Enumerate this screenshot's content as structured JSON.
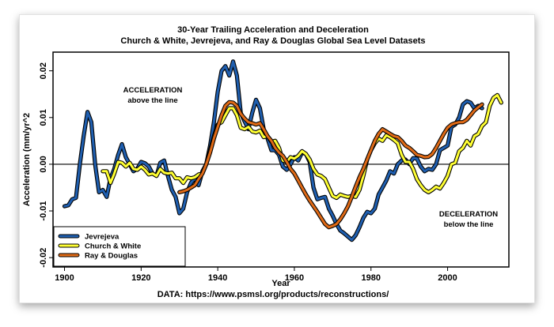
{
  "chart_data": {
    "type": "line",
    "title": "30-Year Trailing Acceleration and Deceleration",
    "subtitle": "Church & White, Jevrejeva, and Ray & Douglas Global Sea Level Datasets",
    "xlabel": "Year",
    "ylabel": "Acceleration (mm/yr^2",
    "xlim": [
      1897,
      2016
    ],
    "ylim": [
      -0.022,
      0.024
    ],
    "xticks": [
      "1900",
      "1920",
      "1940",
      "1960",
      "1980",
      "2000"
    ],
    "xtick_values": [
      1900,
      1920,
      1940,
      1960,
      1980,
      2000
    ],
    "yticks": [
      "-0.02",
      "-0.01",
      "0.00",
      "0.01",
      "0.02"
    ],
    "ytick_values": [
      -0.02,
      -0.01,
      0.0,
      0.01,
      0.02
    ],
    "reference_line": 0,
    "annotations": {
      "acceleration_title": "ACCELERATION",
      "acceleration_sub": "above the line",
      "deceleration_title": "DECELERATION",
      "deceleration_sub": "below the line"
    },
    "source": "DATA: https://www.psmsl.org/products/reconstructions/",
    "legend_position": "bottom-left",
    "series": [
      {
        "name": "Jevrejeva",
        "color": "#1f5fb0",
        "x": [
          1900,
          1901,
          1902,
          1903,
          1904,
          1905,
          1906,
          1907,
          1908,
          1909,
          1910,
          1911,
          1912,
          1913,
          1914,
          1915,
          1916,
          1917,
          1918,
          1919,
          1920,
          1921,
          1922,
          1923,
          1924,
          1925,
          1926,
          1927,
          1928,
          1929,
          1930,
          1931,
          1932,
          1933,
          1934,
          1935,
          1936,
          1937,
          1938,
          1939,
          1940,
          1941,
          1942,
          1943,
          1944,
          1945,
          1946,
          1947,
          1948,
          1949,
          1950,
          1951,
          1952,
          1953,
          1954,
          1955,
          1956,
          1957,
          1958,
          1959,
          1960,
          1961,
          1962,
          1963,
          1964,
          1965,
          1966,
          1967,
          1968,
          1969,
          1970,
          1971,
          1972,
          1973,
          1974,
          1975,
          1976,
          1977,
          1978,
          1979,
          1980,
          1981,
          1982,
          1983,
          1984,
          1985,
          1986,
          1987,
          1988,
          1989,
          1990,
          1991,
          1992,
          1993,
          1994,
          1995,
          1996,
          1997,
          1998,
          1999,
          2000,
          2001,
          2002,
          2003,
          2004,
          2005,
          2006,
          2007,
          2008,
          2009
        ],
        "values": [
          -0.009,
          -0.0088,
          -0.0075,
          -0.0072,
          0.0,
          0.006,
          0.0112,
          0.009,
          0.0,
          -0.006,
          -0.0055,
          -0.007,
          -0.003,
          -0.001,
          0.002,
          0.0043,
          0.0015,
          0.0,
          -0.0015,
          -0.001,
          0.0005,
          0.0002,
          -0.0005,
          -0.002,
          -0.0025,
          0.0003,
          0.0008,
          -0.0025,
          -0.0055,
          -0.007,
          -0.0105,
          -0.0095,
          -0.006,
          -0.004,
          -0.003,
          -0.0045,
          -0.0015,
          0.0,
          0.004,
          0.009,
          0.0155,
          0.02,
          0.021,
          0.019,
          0.022,
          0.019,
          0.011,
          0.0092,
          0.0075,
          0.011,
          0.0138,
          0.012,
          0.0075,
          0.0055,
          0.003,
          0.003,
          0.002,
          -0.0005,
          -0.0012,
          0.0,
          0.0015,
          0.0008,
          0.0025,
          0.0022,
          0.0005,
          -0.005,
          -0.0075,
          -0.0072,
          -0.007,
          -0.0095,
          -0.011,
          -0.0128,
          -0.0142,
          -0.0148,
          -0.0155,
          -0.0162,
          -0.0152,
          -0.0135,
          -0.0115,
          -0.0102,
          -0.0105,
          -0.0095,
          -0.0065,
          -0.005,
          -0.0035,
          -0.0015,
          -0.002,
          0.0,
          0.0008,
          0.001,
          0.0,
          0.0013,
          0.0012,
          -0.0005,
          -0.0015,
          -0.001,
          -0.0012,
          0.0,
          0.003,
          0.0035,
          0.004,
          0.008,
          0.0085,
          0.01,
          0.0128,
          0.0135,
          0.0132,
          0.012,
          0.0125,
          0.012
        ]
      },
      {
        "name": "Church & White",
        "color": "#ffff33",
        "x": [
          1910,
          1911,
          1912,
          1913,
          1914,
          1915,
          1916,
          1917,
          1918,
          1919,
          1920,
          1921,
          1922,
          1923,
          1924,
          1925,
          1926,
          1927,
          1928,
          1929,
          1930,
          1931,
          1932,
          1933,
          1934,
          1935,
          1936,
          1937,
          1938,
          1939,
          1940,
          1941,
          1942,
          1943,
          1944,
          1945,
          1946,
          1947,
          1948,
          1949,
          1950,
          1951,
          1952,
          1953,
          1954,
          1955,
          1956,
          1957,
          1958,
          1959,
          1960,
          1961,
          1962,
          1963,
          1964,
          1965,
          1966,
          1967,
          1968,
          1969,
          1970,
          1971,
          1972,
          1973,
          1974,
          1975,
          1976,
          1977,
          1978,
          1979,
          1980,
          1981,
          1982,
          1983,
          1984,
          1985,
          1986,
          1987,
          1988,
          1989,
          1990,
          1991,
          1992,
          1993,
          1994,
          1995,
          1996,
          1997,
          1998,
          1999,
          2000,
          2001,
          2002,
          2003,
          2004,
          2005,
          2006,
          2007,
          2008,
          2009,
          2010,
          2011,
          2012,
          2013,
          2014
        ],
        "values": [
          -0.0015,
          -0.0015,
          -0.004,
          -0.002,
          0.0005,
          0.0003,
          -0.0005,
          0.0003,
          -0.001,
          -0.0012,
          -0.0005,
          -0.0012,
          -0.0022,
          -0.002,
          -0.0025,
          -0.001,
          -0.0018,
          -0.002,
          -0.0018,
          -0.003,
          -0.003,
          -0.004,
          -0.0028,
          -0.003,
          -0.0028,
          -0.0022,
          -0.002,
          0.0,
          0.003,
          0.006,
          0.0085,
          0.009,
          0.0105,
          0.012,
          0.012,
          0.0105,
          0.0078,
          0.0075,
          0.008,
          0.007,
          0.0068,
          0.0072,
          0.0058,
          0.006,
          0.0048,
          0.005,
          0.0035,
          0.0008,
          0.0005,
          0.0015,
          0.0012,
          0.0018,
          0.0028,
          0.0022,
          0.001,
          -0.001,
          -0.0022,
          -0.0025,
          -0.0032,
          -0.005,
          -0.0068,
          -0.0072,
          -0.0065,
          -0.0068,
          -0.007,
          -0.0068,
          -0.007,
          -0.0055,
          -0.0025,
          0.001,
          0.003,
          0.0045,
          0.0055,
          0.005,
          0.0062,
          0.0058,
          0.0052,
          0.0045,
          0.002,
          0.0005,
          0.0005,
          -0.001,
          -0.0032,
          -0.0045,
          -0.0055,
          -0.006,
          -0.0055,
          -0.0048,
          -0.0052,
          -0.004,
          -0.0025,
          0.0,
          0.0003,
          0.0028,
          0.0035,
          0.005,
          0.004,
          0.006,
          0.0065,
          0.0082,
          0.009,
          0.0125,
          0.0142,
          0.0148,
          0.0132
        ]
      },
      {
        "name": "Ray & Douglas",
        "color": "#e06a16",
        "x": [
          1930,
          1931,
          1932,
          1933,
          1934,
          1935,
          1936,
          1937,
          1938,
          1939,
          1940,
          1941,
          1942,
          1943,
          1944,
          1945,
          1946,
          1947,
          1948,
          1949,
          1950,
          1951,
          1952,
          1953,
          1954,
          1955,
          1956,
          1957,
          1958,
          1959,
          1960,
          1961,
          1962,
          1963,
          1964,
          1965,
          1966,
          1967,
          1968,
          1969,
          1970,
          1971,
          1972,
          1973,
          1974,
          1975,
          1976,
          1977,
          1978,
          1979,
          1980,
          1981,
          1982,
          1983,
          1984,
          1985,
          1986,
          1987,
          1988,
          1989,
          1990,
          1991,
          1992,
          1993,
          1994,
          1995,
          1996,
          1997,
          1998,
          1999,
          2000,
          2001,
          2002,
          2003,
          2004,
          2005,
          2006,
          2007,
          2008,
          2009
        ],
        "values": [
          -0.006,
          -0.0058,
          -0.0055,
          -0.005,
          -0.0045,
          -0.0032,
          -0.002,
          0.0,
          0.0025,
          0.0055,
          0.008,
          0.0105,
          0.0125,
          0.0133,
          0.0132,
          0.0125,
          0.0108,
          0.0098,
          0.009,
          0.0088,
          0.0085,
          0.0088,
          0.0075,
          0.006,
          0.005,
          0.0035,
          0.0025,
          0.0018,
          0.0005,
          -0.001,
          -0.002,
          -0.0035,
          -0.005,
          -0.0065,
          -0.0078,
          -0.009,
          -0.0102,
          -0.0115,
          -0.0128,
          -0.0135,
          -0.0132,
          -0.0128,
          -0.0118,
          -0.0105,
          -0.009,
          -0.007,
          -0.0048,
          -0.0028,
          -0.001,
          0.001,
          0.003,
          0.005,
          0.0065,
          0.0075,
          0.007,
          0.0065,
          0.006,
          0.0058,
          0.005,
          0.004,
          0.0035,
          0.0028,
          0.002,
          0.0018,
          0.0015,
          0.0016,
          0.0022,
          0.0035,
          0.005,
          0.0065,
          0.0078,
          0.0085,
          0.0088,
          0.009,
          0.009,
          0.0095,
          0.0105,
          0.0115,
          0.0122,
          0.0128
        ]
      }
    ]
  }
}
